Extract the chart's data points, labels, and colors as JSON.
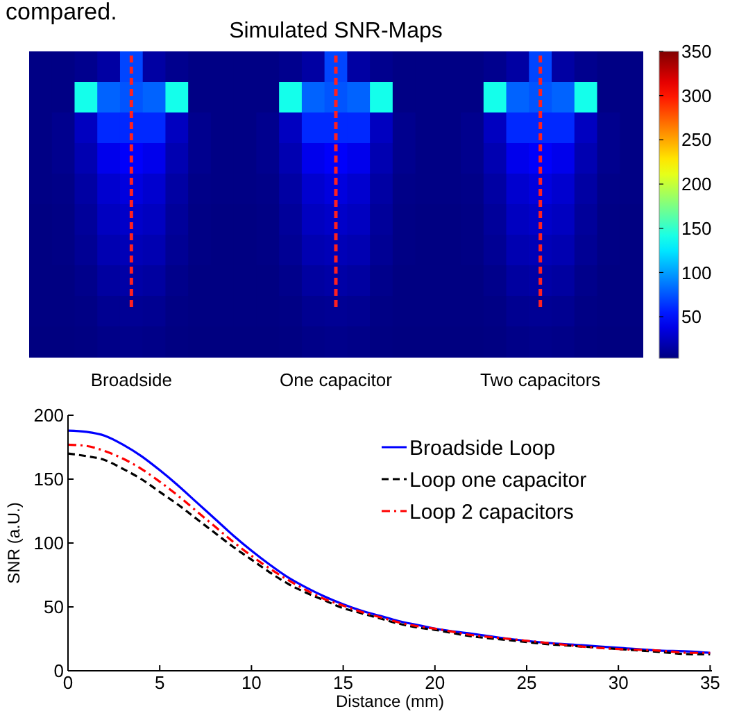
{
  "chart_data": [
    {
      "type": "heatmap",
      "title": "Simulated SNR-Maps",
      "annotations": [
        "compared."
      ],
      "categories": [
        null,
        null,
        null,
        null,
        "Broadside",
        null,
        null,
        null,
        null,
        null,
        null,
        null,
        null,
        "One capacitor",
        null,
        null,
        null,
        null,
        null,
        null,
        null,
        null,
        "Two capacitors",
        null,
        null,
        null,
        null
      ],
      "y_categories": [
        null,
        null,
        null,
        null,
        null,
        null,
        null,
        null,
        null,
        null
      ],
      "cells": [
        [
          5,
          5,
          8,
          15,
          70,
          15,
          8,
          5,
          5,
          5,
          5,
          8,
          15,
          70,
          15,
          8,
          5,
          5,
          5,
          5,
          8,
          15,
          70,
          15,
          8,
          5,
          5
        ],
        [
          5,
          5,
          140,
          80,
          75,
          80,
          140,
          5,
          5,
          5,
          5,
          140,
          80,
          75,
          80,
          140,
          5,
          5,
          5,
          5,
          140,
          80,
          75,
          80,
          140,
          5,
          5
        ],
        [
          5,
          8,
          25,
          60,
          60,
          60,
          25,
          8,
          5,
          5,
          8,
          25,
          60,
          60,
          60,
          25,
          8,
          5,
          5,
          8,
          25,
          60,
          60,
          60,
          25,
          8,
          5
        ],
        [
          5,
          8,
          20,
          40,
          45,
          40,
          20,
          8,
          5,
          5,
          8,
          20,
          40,
          45,
          40,
          20,
          8,
          5,
          5,
          8,
          20,
          40,
          45,
          40,
          20,
          8,
          5
        ],
        [
          5,
          6,
          15,
          30,
          35,
          30,
          15,
          6,
          5,
          5,
          6,
          15,
          30,
          35,
          30,
          15,
          6,
          5,
          5,
          6,
          15,
          30,
          35,
          30,
          15,
          6,
          5
        ],
        [
          4,
          5,
          12,
          25,
          28,
          25,
          12,
          5,
          4,
          4,
          5,
          12,
          25,
          28,
          25,
          12,
          5,
          4,
          4,
          5,
          12,
          25,
          28,
          25,
          12,
          5,
          4
        ],
        [
          4,
          5,
          10,
          20,
          22,
          20,
          10,
          5,
          4,
          4,
          5,
          10,
          20,
          22,
          20,
          10,
          5,
          4,
          4,
          5,
          10,
          20,
          22,
          20,
          10,
          5,
          4
        ],
        [
          4,
          4,
          7,
          14,
          16,
          14,
          7,
          4,
          4,
          4,
          4,
          7,
          14,
          16,
          14,
          7,
          4,
          4,
          4,
          4,
          7,
          14,
          16,
          14,
          7,
          4,
          4
        ],
        [
          4,
          4,
          5,
          9,
          10,
          9,
          5,
          4,
          4,
          4,
          4,
          5,
          9,
          10,
          9,
          5,
          4,
          4,
          4,
          4,
          5,
          9,
          10,
          9,
          5,
          4,
          4
        ],
        [
          3,
          3,
          4,
          6,
          7,
          6,
          4,
          3,
          3,
          3,
          3,
          4,
          6,
          7,
          6,
          4,
          3,
          3,
          3,
          3,
          4,
          6,
          7,
          6,
          4,
          3,
          3
        ]
      ],
      "clim": [
        3,
        350
      ],
      "cticks": [
        50,
        100,
        150,
        200,
        250,
        300,
        350
      ],
      "ref_lines": [
        {
          "axis": "x",
          "value": "Broadside",
          "color": "#ff2020",
          "line_style": "dashed"
        },
        {
          "axis": "x",
          "value": "One capacitor",
          "color": "#ff2020",
          "line_style": "dashed"
        },
        {
          "axis": "x",
          "value": "Two capacitors",
          "color": "#ff2020",
          "line_style": "dashed"
        }
      ]
    },
    {
      "type": "line",
      "xlabel": "Distance (mm)",
      "ylabel": "SNR (a.U.)",
      "xlim": [
        0,
        35.1
      ],
      "xticks": [
        0,
        5,
        10,
        15,
        20,
        25,
        30,
        35
      ],
      "ylim": [
        0,
        200
      ],
      "yticks": [
        0,
        50,
        100,
        150,
        200
      ],
      "legend": "top right",
      "grid": false,
      "x": [
        0,
        1,
        2,
        3,
        4,
        5,
        6,
        7,
        8,
        9,
        10,
        11,
        12,
        13,
        14,
        15,
        16,
        17,
        18,
        19,
        20,
        22,
        24,
        26,
        28,
        30,
        32,
        34,
        35
      ],
      "series": [
        {
          "name": "Broadside Loop",
          "color": "#0000ff",
          "line_style": "solid",
          "values": [
            188,
            187,
            184,
            177,
            168,
            157,
            145,
            132,
            119,
            106,
            94,
            83,
            73,
            65,
            58,
            52,
            47,
            43,
            39,
            36,
            33,
            29,
            25,
            22,
            20,
            18,
            16,
            15,
            14
          ]
        },
        {
          "name": "Loop one capacitor",
          "color": "#000000",
          "line_style": "dashed",
          "values": [
            170,
            168,
            165,
            158,
            150,
            140,
            130,
            119,
            108,
            97,
            87,
            77,
            68,
            61,
            55,
            49,
            45,
            41,
            37,
            34,
            32,
            27,
            24,
            21,
            19,
            17,
            15,
            13,
            13
          ]
        },
        {
          "name": "Loop 2 capacitors",
          "color": "#ff0000",
          "line_style": "dashdot",
          "values": [
            177,
            176,
            172,
            166,
            158,
            148,
            137,
            125,
            113,
            101,
            90,
            80,
            71,
            63,
            56,
            51,
            46,
            42,
            38,
            35,
            33,
            28,
            25,
            22,
            19,
            17,
            16,
            14,
            14
          ]
        }
      ]
    }
  ]
}
